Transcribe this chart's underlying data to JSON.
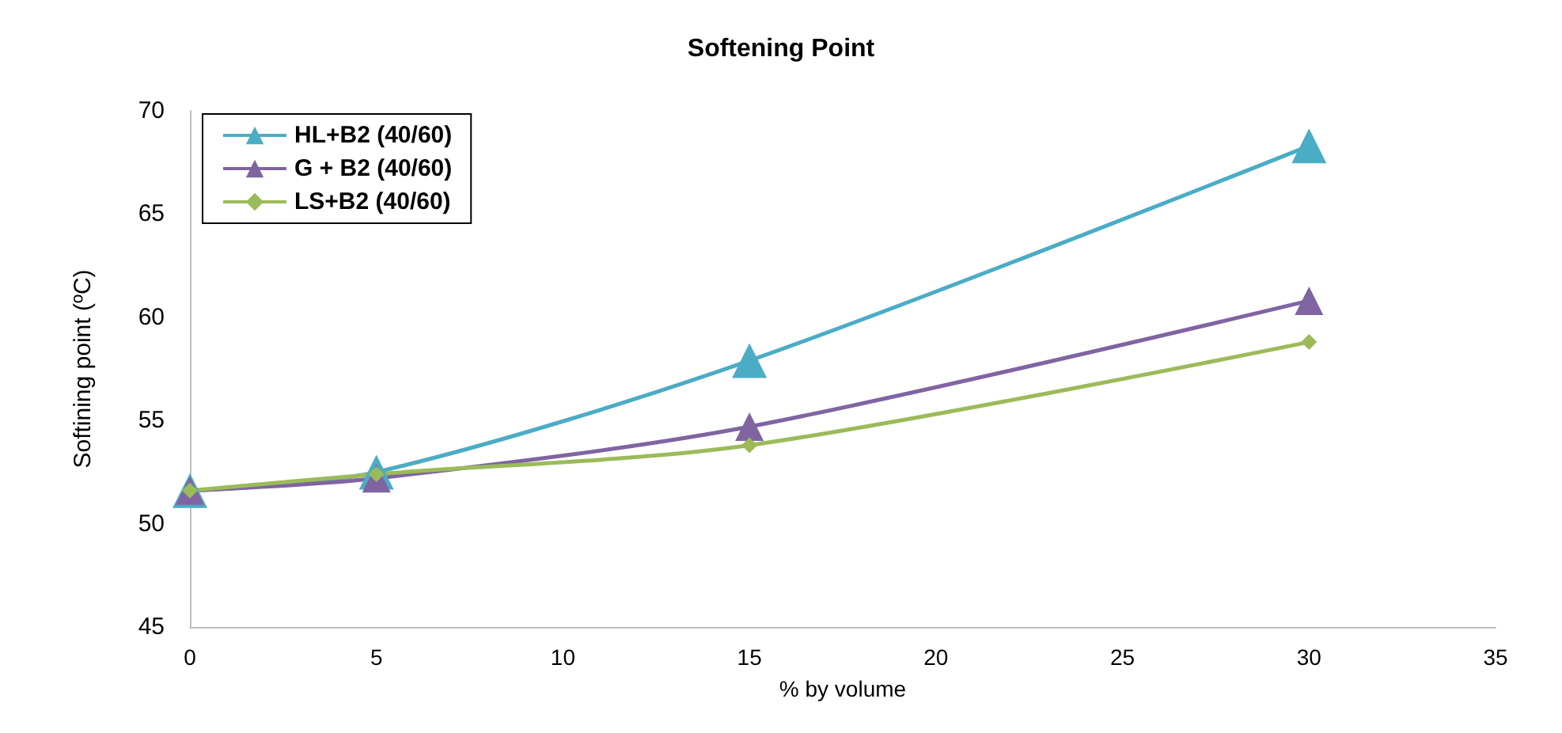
{
  "chart_data": {
    "type": "line",
    "title": "Softening Point",
    "xlabel": "% by volume",
    "ylabel": "Softining point (ºC)",
    "x": [
      0,
      5,
      15,
      30
    ],
    "series": [
      {
        "name": "HL+B2 (40/60)",
        "color": "#4bacc6",
        "marker": "triangle",
        "values": [
          51.6,
          52.5,
          57.9,
          68.3
        ]
      },
      {
        "name": "G + B2 (40/60)",
        "color": "#8064a2",
        "marker": "triangle",
        "values": [
          51.6,
          52.2,
          54.7,
          60.8
        ]
      },
      {
        "name": "LS+B2 (40/60)",
        "color": "#9bbb59",
        "marker": "diamond",
        "values": [
          51.6,
          52.4,
          53.8,
          58.8
        ]
      }
    ],
    "xlim": [
      0,
      35
    ],
    "xticks": [
      0,
      5,
      10,
      15,
      20,
      25,
      30,
      35
    ],
    "ylim": [
      45,
      70
    ],
    "yticks": [
      45,
      50,
      55,
      60,
      65,
      70
    ],
    "grid": false,
    "legend": "top left",
    "line_style": "solid"
  }
}
